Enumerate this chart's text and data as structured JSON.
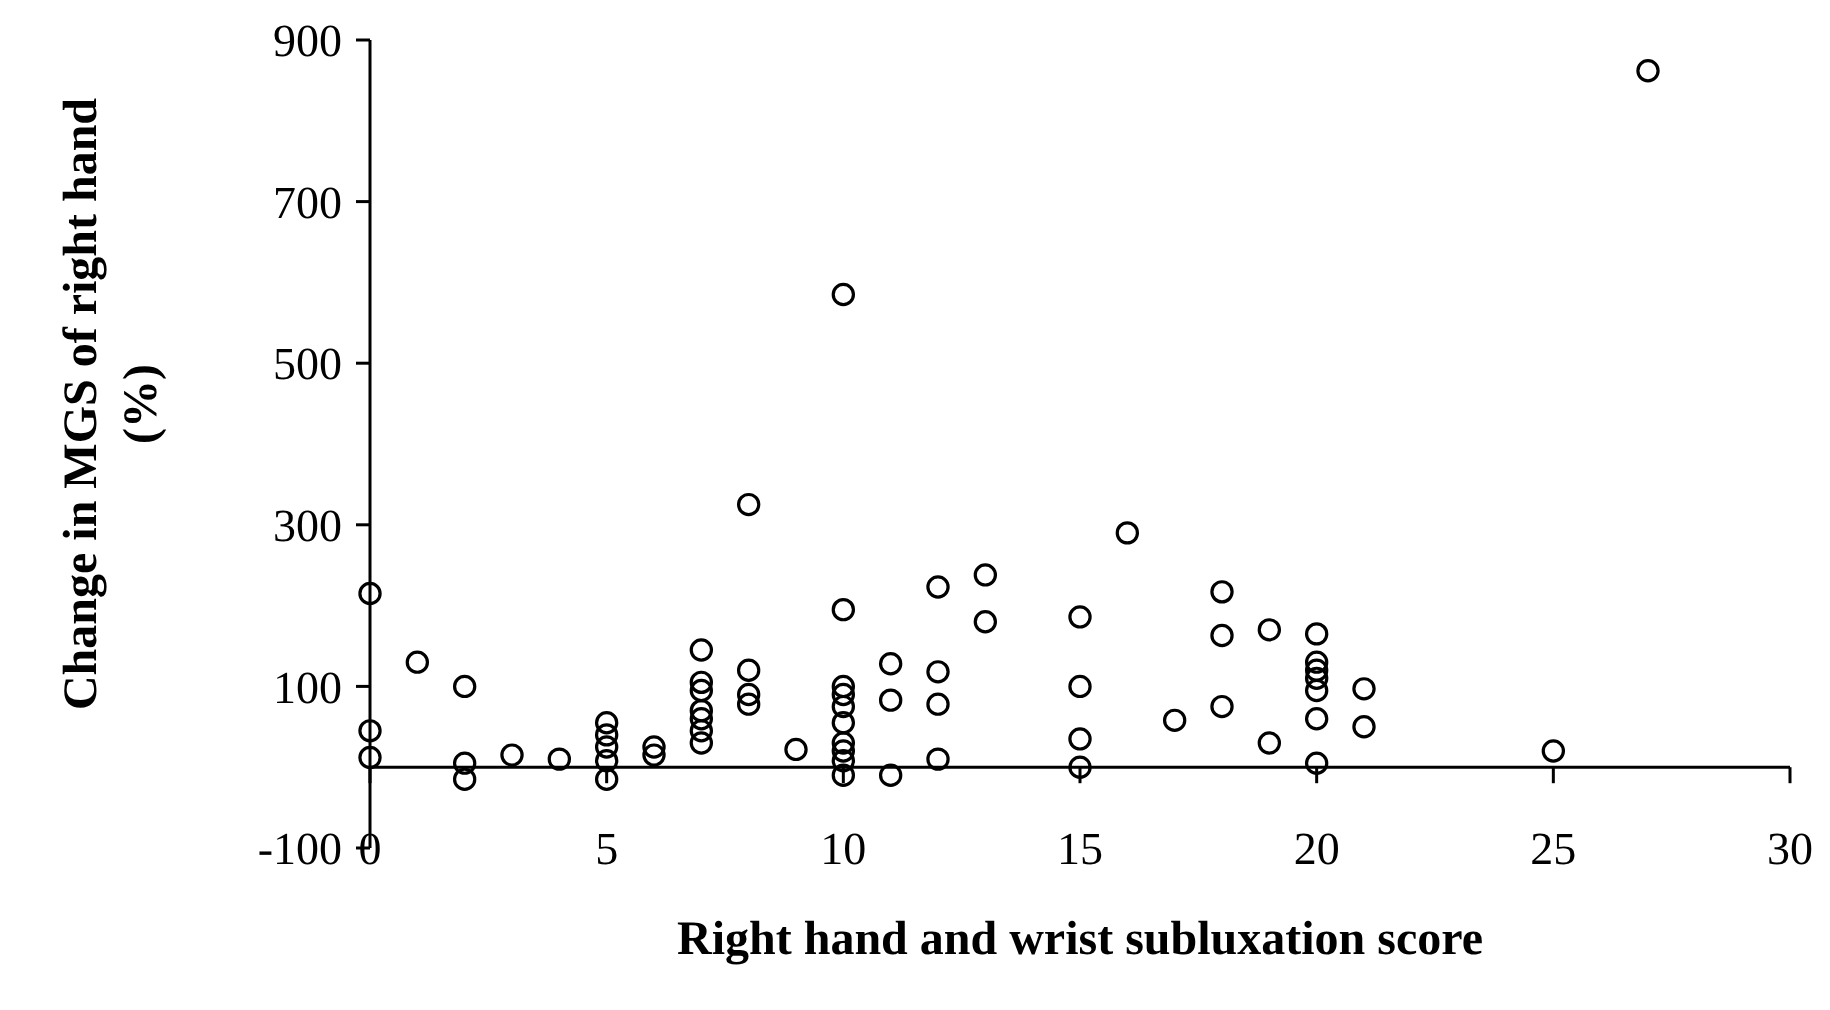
{
  "chart_data": {
    "type": "scatter",
    "xlabel": "Right hand and wrist subluxation score",
    "ylabel": "Change in MGS of right hand\n(%)",
    "x": [
      0,
      0,
      0,
      1,
      2,
      2,
      2,
      3,
      4,
      5,
      5,
      5,
      5,
      5,
      6,
      6,
      7,
      7,
      7,
      7,
      7,
      7,
      7,
      8,
      8,
      8,
      8,
      9,
      10,
      10,
      10,
      10,
      10,
      10,
      10,
      10,
      10,
      10,
      11,
      11,
      11,
      12,
      12,
      12,
      12,
      13,
      13,
      15,
      15,
      15,
      15,
      16,
      17,
      18,
      18,
      18,
      19,
      19,
      20,
      20,
      20,
      20,
      20,
      20,
      20,
      21,
      21,
      25,
      27
    ],
    "values": [
      215,
      45,
      12,
      130,
      100,
      5,
      -15,
      15,
      10,
      55,
      40,
      25,
      8,
      -15,
      25,
      15,
      145,
      105,
      95,
      70,
      60,
      45,
      30,
      325,
      120,
      90,
      78,
      22,
      585,
      195,
      100,
      90,
      75,
      55,
      30,
      20,
      8,
      -10,
      128,
      83,
      -10,
      223,
      118,
      78,
      10,
      238,
      180,
      186,
      100,
      35,
      0,
      290,
      58,
      217,
      163,
      75,
      170,
      30,
      165,
      130,
      120,
      110,
      95,
      60,
      5,
      97,
      50,
      20,
      862
    ],
    "color": "#000000",
    "marker": "circle",
    "grid": false,
    "xlim": [
      0,
      30
    ],
    "xticks": [
      0,
      5,
      10,
      15,
      20,
      25,
      30
    ],
    "ylim": [
      -100,
      900
    ],
    "yticks": [
      -100,
      100,
      300,
      500,
      700,
      900
    ]
  }
}
